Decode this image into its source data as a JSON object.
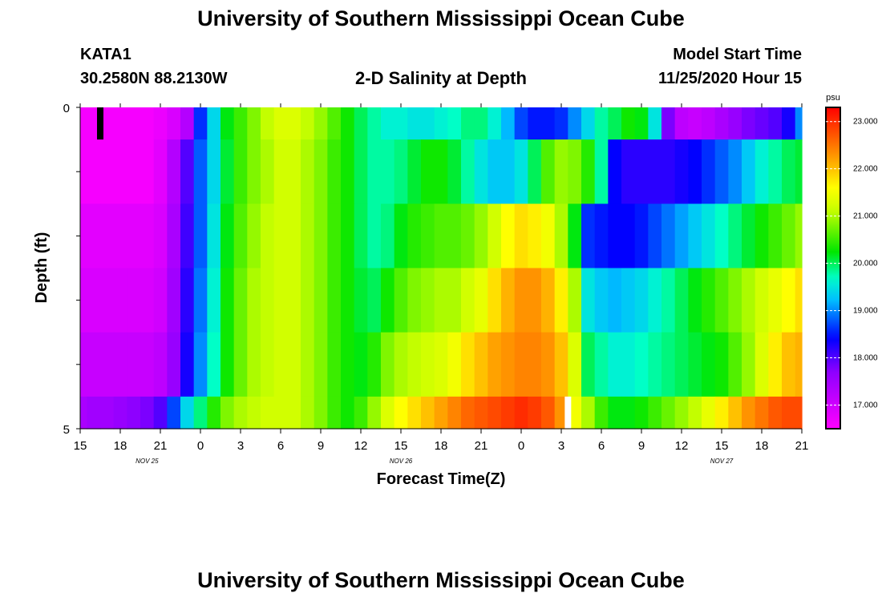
{
  "header": {
    "title": "University of Southern Mississippi Ocean Cube",
    "station": "KATA1",
    "coords": "30.2580N 88.2130W",
    "subtitle": "2-D Salinity at Depth",
    "model_label": "Model Start Time",
    "model_time": "11/25/2020 Hour 15"
  },
  "footer": {
    "title": "University of Southern Mississippi Ocean Cube"
  },
  "chart_data": {
    "type": "heatmap",
    "title": "2-D Salinity at Depth",
    "xlabel": "Forecast Time(Z)",
    "ylabel": "Depth (ft)",
    "x_tick_labels": [
      "15",
      "18",
      "21",
      "0",
      "3",
      "6",
      "9",
      "12",
      "15",
      "18",
      "21",
      "0",
      "3",
      "6",
      "9",
      "12",
      "15",
      "18",
      "21"
    ],
    "date_labels": [
      "NOV 25",
      "NOV 26",
      "NOV 27"
    ],
    "y_tick_labels": [
      "0",
      "5"
    ],
    "ylim": [
      0,
      5
    ],
    "colorbar": {
      "unit": "psu",
      "ticks": [
        "23.000",
        "22.000",
        "21.000",
        "20.000",
        "19.000",
        "18.000",
        "17.000"
      ],
      "range": [
        16.5,
        23.3
      ]
    },
    "x_hours_from_start": [
      0,
      1,
      2,
      3,
      4,
      5,
      6,
      7,
      8,
      9,
      10,
      11,
      12,
      13,
      14,
      15,
      16,
      17,
      18,
      19,
      20,
      21,
      22,
      23,
      24,
      25,
      26,
      27,
      28,
      29,
      30,
      31,
      32,
      33,
      34,
      35,
      36,
      37,
      38,
      39,
      40,
      41,
      42,
      43,
      44,
      45,
      46,
      47,
      48,
      49,
      50,
      51,
      52,
      53,
      54
    ],
    "depth_bands_ft": [
      "0-0.5",
      "0.5-1.5",
      "1.5-2.5",
      "2.5-3.5",
      "3.5-4.5",
      "4.5-5"
    ],
    "salinity_psu": [
      [
        16.6,
        16.6,
        16.6,
        16.6,
        16.6,
        16.6,
        16.7,
        16.9,
        17.3,
        18.6,
        19.4,
        20.2,
        20.5,
        20.8,
        21.1,
        21.3,
        21.3,
        21.1,
        20.9,
        20.6,
        20.3,
        20.0,
        19.8,
        19.6,
        19.6,
        19.5,
        19.5,
        19.6,
        19.7,
        19.9,
        19.9,
        19.6,
        19.2,
        18.7,
        18.5,
        18.5,
        18.6,
        19.0,
        19.4,
        19.8,
        20.0,
        20.3,
        20.2,
        19.5,
        17.8,
        17.2,
        17.1,
        17.2,
        17.4,
        17.6,
        17.8,
        17.9,
        18.0,
        18.3,
        19.0
      ],
      [
        16.6,
        16.6,
        16.6,
        16.6,
        16.6,
        16.6,
        16.8,
        17.3,
        18.0,
        18.8,
        19.4,
        20.1,
        20.5,
        20.8,
        21.0,
        21.2,
        21.2,
        21.0,
        20.8,
        20.5,
        20.3,
        20.0,
        19.8,
        19.8,
        19.9,
        20.1,
        20.3,
        20.3,
        20.1,
        19.8,
        19.5,
        19.3,
        19.3,
        19.5,
        20.0,
        20.6,
        20.9,
        20.8,
        20.4,
        19.8,
        18.4,
        18.2,
        18.2,
        18.2,
        18.2,
        18.3,
        18.4,
        18.6,
        18.8,
        19.0,
        19.3,
        19.6,
        19.8,
        20.0,
        20.1
      ],
      [
        16.8,
        16.8,
        16.8,
        16.8,
        16.8,
        16.8,
        16.9,
        17.4,
        18.1,
        18.8,
        19.5,
        20.2,
        20.6,
        20.9,
        21.1,
        21.2,
        21.2,
        21.0,
        20.8,
        20.5,
        20.3,
        20.0,
        19.8,
        19.9,
        20.2,
        20.4,
        20.5,
        20.6,
        20.6,
        20.7,
        20.9,
        21.2,
        21.6,
        21.8,
        21.7,
        21.5,
        21.0,
        20.2,
        18.6,
        18.5,
        18.4,
        18.4,
        18.5,
        18.7,
        18.9,
        19.1,
        19.3,
        19.5,
        19.7,
        19.9,
        20.1,
        20.3,
        20.5,
        20.7,
        20.9
      ],
      [
        16.9,
        16.9,
        16.9,
        16.9,
        16.9,
        16.9,
        17.0,
        17.5,
        18.2,
        18.9,
        19.6,
        20.3,
        20.7,
        21.0,
        21.1,
        21.2,
        21.2,
        21.0,
        20.8,
        20.5,
        20.3,
        20.1,
        20.0,
        20.3,
        20.6,
        20.8,
        20.9,
        21.0,
        21.0,
        21.2,
        21.4,
        21.8,
        22.1,
        22.3,
        22.3,
        22.1,
        21.7,
        21.0,
        19.5,
        19.3,
        19.2,
        19.3,
        19.4,
        19.6,
        19.8,
        20.0,
        20.2,
        20.4,
        20.6,
        20.8,
        21.0,
        21.2,
        21.4,
        21.6,
        21.8
      ],
      [
        17.1,
        17.1,
        17.1,
        17.1,
        17.1,
        17.1,
        17.2,
        17.6,
        18.3,
        19.0,
        19.7,
        20.3,
        20.7,
        21.0,
        21.1,
        21.2,
        21.2,
        21.0,
        20.8,
        20.5,
        20.3,
        20.2,
        20.4,
        20.8,
        21.0,
        21.1,
        21.2,
        21.3,
        21.5,
        21.8,
        22.0,
        22.2,
        22.3,
        22.4,
        22.4,
        22.3,
        22.0,
        21.3,
        20.0,
        19.8,
        19.6,
        19.6,
        19.7,
        19.8,
        19.9,
        20.0,
        20.1,
        20.2,
        20.3,
        20.6,
        20.9,
        21.3,
        21.7,
        22.0,
        22.1
      ],
      [
        17.4,
        17.5,
        17.5,
        17.6,
        17.7,
        17.8,
        18.0,
        18.7,
        19.4,
        19.9,
        20.4,
        20.8,
        21.0,
        21.1,
        21.2,
        21.2,
        21.2,
        21.0,
        20.8,
        20.5,
        20.3,
        20.5,
        20.9,
        21.3,
        21.6,
        21.8,
        22.0,
        22.2,
        22.4,
        22.6,
        22.7,
        22.8,
        22.9,
        23.0,
        22.9,
        22.7,
        22.3,
        21.5,
        21.0,
        20.5,
        20.2,
        20.2,
        20.3,
        20.5,
        20.7,
        20.9,
        21.1,
        21.4,
        21.7,
        22.0,
        22.3,
        22.5,
        22.7,
        22.8,
        22.8
      ]
    ],
    "markers": [
      {
        "color": "#000000",
        "x_hour": 1.5,
        "depth_ft": [
          0,
          0.5
        ]
      },
      {
        "color": "#ffffff",
        "x_hour": 36.5,
        "depth_ft": [
          4.5,
          5
        ]
      }
    ]
  }
}
